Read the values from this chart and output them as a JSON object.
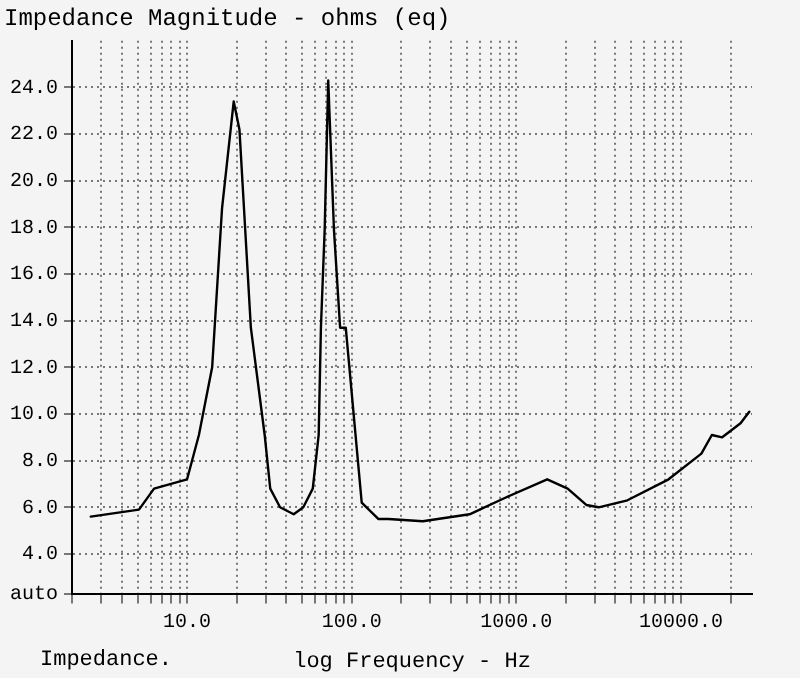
{
  "chart_data": {
    "type": "line",
    "title": "Impedance Magnitude - ohms (eq)",
    "xlabel": "log Frequency - Hz",
    "annotations": [
      "Impedance."
    ],
    "log": "x",
    "grid": true,
    "marker": "none",
    "line_style": "solid",
    "legend": false,
    "xlim": [
      2,
      27000
    ],
    "ylim": [
      2.3,
      26
    ],
    "xticks": [
      {
        "value": 2,
        "label": null
      },
      {
        "value": 3,
        "label": null
      },
      {
        "value": 4,
        "label": null
      },
      {
        "value": 5,
        "label": null
      },
      {
        "value": 6,
        "label": null
      },
      {
        "value": 7,
        "label": null
      },
      {
        "value": 8,
        "label": null
      },
      {
        "value": 9,
        "label": null
      },
      {
        "value": 10,
        "label": "10.0"
      },
      {
        "value": 20,
        "label": null
      },
      {
        "value": 30,
        "label": null
      },
      {
        "value": 40,
        "label": null
      },
      {
        "value": 50,
        "label": null
      },
      {
        "value": 60,
        "label": null
      },
      {
        "value": 70,
        "label": null
      },
      {
        "value": 80,
        "label": null
      },
      {
        "value": 90,
        "label": null
      },
      {
        "value": 100,
        "label": "100.0"
      },
      {
        "value": 200,
        "label": null
      },
      {
        "value": 300,
        "label": null
      },
      {
        "value": 400,
        "label": null
      },
      {
        "value": 500,
        "label": null
      },
      {
        "value": 600,
        "label": null
      },
      {
        "value": 700,
        "label": null
      },
      {
        "value": 800,
        "label": null
      },
      {
        "value": 900,
        "label": null
      },
      {
        "value": 1000,
        "label": "1000.0"
      },
      {
        "value": 2000,
        "label": null
      },
      {
        "value": 3000,
        "label": null
      },
      {
        "value": 4000,
        "label": null
      },
      {
        "value": 5000,
        "label": null
      },
      {
        "value": 6000,
        "label": null
      },
      {
        "value": 7000,
        "label": null
      },
      {
        "value": 8000,
        "label": null
      },
      {
        "value": 9000,
        "label": null
      },
      {
        "value": 10000,
        "label": "10000.0"
      },
      {
        "value": 20000,
        "label": null
      }
    ],
    "yticks": [
      {
        "value": 2.3,
        "label": "auto"
      },
      {
        "value": 4,
        "label": "4.0"
      },
      {
        "value": 6,
        "label": "6.0"
      },
      {
        "value": 8,
        "label": "8.0"
      },
      {
        "value": 10,
        "label": "10.0"
      },
      {
        "value": 12,
        "label": "12.0"
      },
      {
        "value": 14,
        "label": "14.0"
      },
      {
        "value": 16,
        "label": "16.0"
      },
      {
        "value": 18,
        "label": "18.0"
      },
      {
        "value": 20,
        "label": "20.0"
      },
      {
        "value": 22,
        "label": "22.0"
      },
      {
        "value": 24,
        "label": "24.0"
      }
    ],
    "series": [
      {
        "color": "#000000",
        "x": [
          2.6,
          5.1,
          6.3,
          10,
          11.8,
          14.2,
          16.3,
          19.2,
          20.8,
          24.4,
          29.6,
          32,
          36.7,
          44.4,
          50.8,
          58,
          63,
          65,
          68.5,
          72,
          78,
          85,
          92,
          115,
          145,
          167,
          270,
          520,
          850,
          1540,
          2050,
          2660,
          3160,
          4730,
          8410,
          13300,
          15400,
          17800,
          23000,
          26000
        ],
        "values": [
          5.6,
          5.9,
          6.8,
          7.2,
          9.1,
          12,
          18.8,
          23.4,
          22.2,
          13.7,
          9.1,
          6.8,
          6,
          5.7,
          6,
          6.8,
          9.1,
          13.7,
          17.9,
          24.3,
          17.9,
          13.7,
          13.7,
          6.2,
          5.5,
          5.5,
          5.4,
          5.7,
          6.4,
          7.2,
          6.8,
          6.1,
          6,
          6.3,
          7.2,
          8.3,
          9.1,
          9,
          9.6,
          10.1
        ]
      }
    ]
  }
}
